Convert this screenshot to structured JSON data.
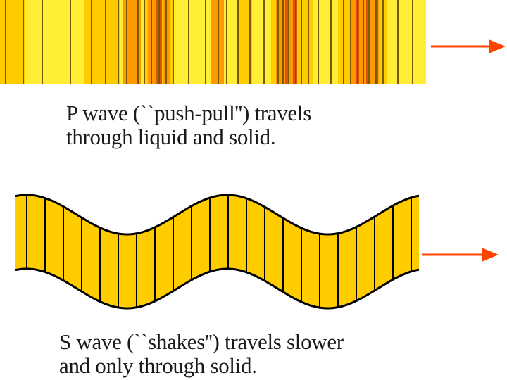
{
  "p_wave": {
    "caption_line1": "P wave (``push-pull'') travels",
    "caption_line2": "through liquid and solid.",
    "colors": {
      "background": "#ffee33",
      "band_light": "#ffcc00",
      "band_orange": "#ff9900",
      "band_red": "#e05010",
      "compression_line": "#7a5a00"
    },
    "direction": "right"
  },
  "s_wave": {
    "caption_line1": "S wave (``shakes'') travels slower",
    "caption_line2": "and only through solid.",
    "colors": {
      "fill": "#ffcc00",
      "line": "#000000"
    },
    "direction": "right"
  },
  "arrow_color": "#ff4400",
  "icons": [
    "arrow-right-icon",
    "arrow-right-icon"
  ]
}
